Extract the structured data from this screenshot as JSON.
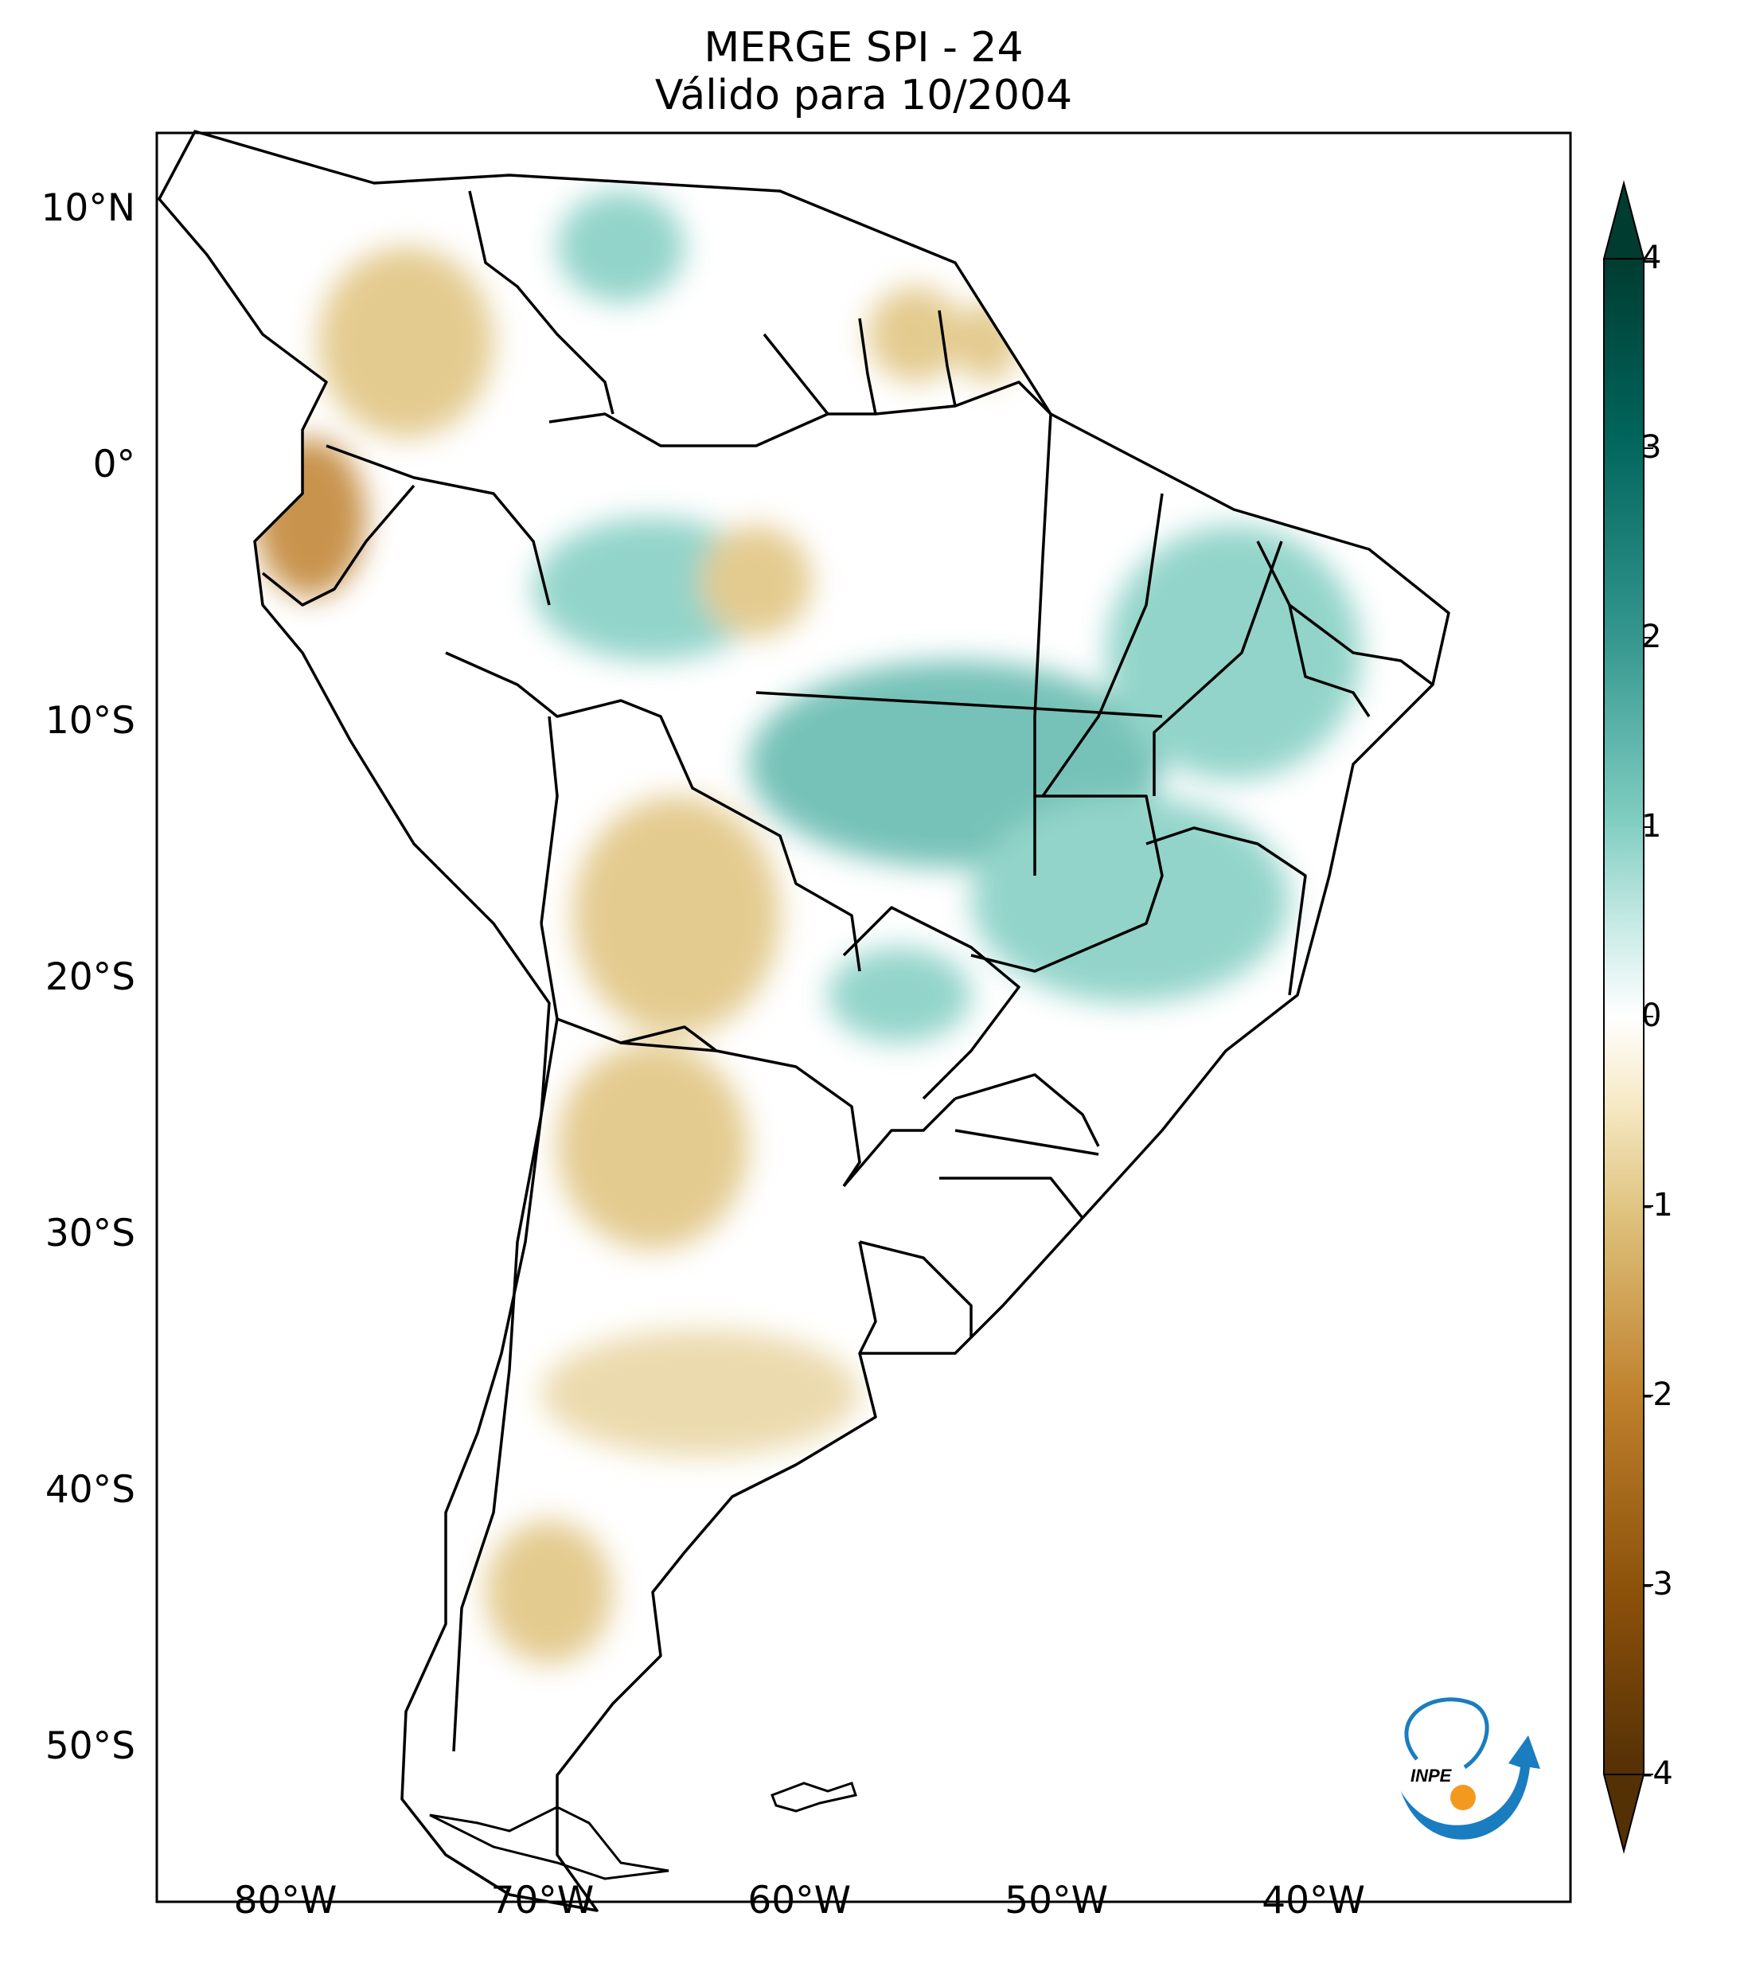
{
  "title": {
    "line1": "MERGE   SPI - 24",
    "line2": "Válido para 10/2004"
  },
  "map": {
    "region": "South America",
    "variable": "SPI - 24",
    "lon_range": [
      -85,
      -30
    ],
    "lat_range": [
      -56,
      13
    ],
    "lat_ticks": [
      {
        "value": 10,
        "label": "10°N"
      },
      {
        "value": 0,
        "label": "0°"
      },
      {
        "value": -10,
        "label": "10°S"
      },
      {
        "value": -20,
        "label": "20°S"
      },
      {
        "value": -30,
        "label": "30°S"
      },
      {
        "value": -40,
        "label": "40°S"
      },
      {
        "value": -50,
        "label": "50°S"
      }
    ],
    "lon_ticks": [
      {
        "value": -80,
        "label": "80°W"
      },
      {
        "value": -70,
        "label": "70°W"
      },
      {
        "value": -60,
        "label": "60°W"
      },
      {
        "value": -50,
        "label": "50°W"
      },
      {
        "value": -40,
        "label": "40°W"
      }
    ],
    "wet_anomaly_color": "#3aa595",
    "dry_anomaly_color": "#c4923e"
  },
  "colorbar": {
    "min": -4,
    "max": 4,
    "ticks": [
      "4",
      "3",
      "2",
      "1",
      "0",
      "-1",
      "-2",
      "-3",
      "-4"
    ],
    "colors": [
      "#543005",
      "#8c510a",
      "#bf812d",
      "#dfc27d",
      "#f6e8c3",
      "#ffffff",
      "#c7eae5",
      "#80cdc1",
      "#35978f",
      "#01665e",
      "#003c30"
    ]
  },
  "logo": {
    "text": "INPE",
    "color_blue": "#1a7dc0",
    "color_orange": "#f39a1e"
  }
}
